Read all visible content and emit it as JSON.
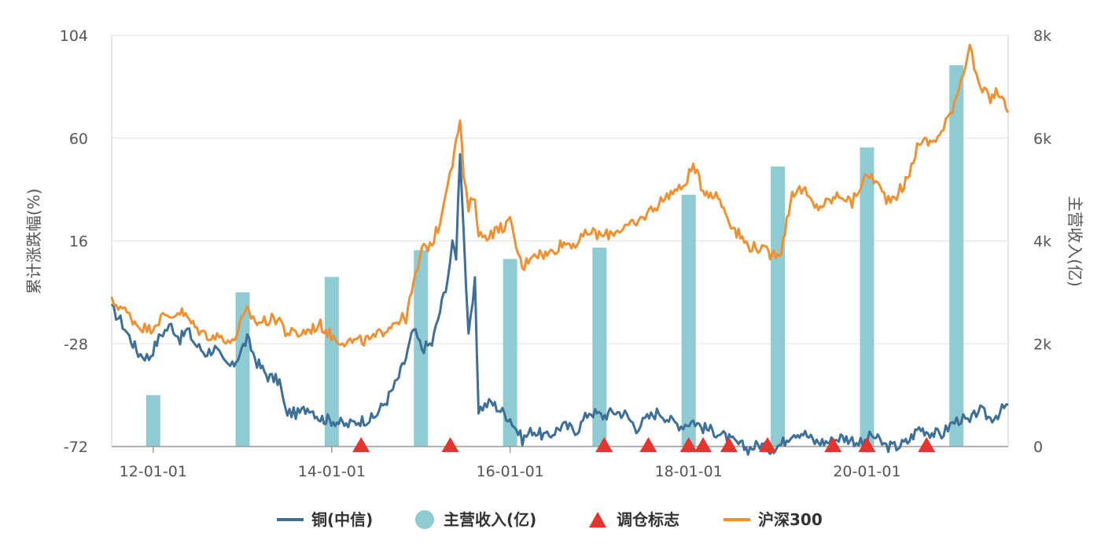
{
  "chart_data": {
    "type": "line",
    "ylabel_left": "累计涨跌幅(%)",
    "ylabel_right": "主营收入(亿)",
    "x_ticks": [
      "12-01-01",
      "14-01-01",
      "16-01-01",
      "18-01-01",
      "20-01-01"
    ],
    "x_tick_dates": [
      "2012-01-01",
      "2014-01-01",
      "2016-01-01",
      "2018-01-01",
      "2020-01-01"
    ],
    "x_range": [
      "2011-07-15",
      "2021-08-01"
    ],
    "y_left_ticks": [
      104,
      60,
      16,
      -28,
      -72
    ],
    "y_left_range": [
      -72,
      104
    ],
    "y_right_ticks": [
      "8k",
      "6k",
      "4k",
      "2k",
      "0"
    ],
    "y_right_range": [
      0,
      8000
    ],
    "grid": true,
    "legend_position": "bottom",
    "colors": {
      "copper": "#3e6f97",
      "revenue": "#8fcbd3",
      "rebalance": "#e8342f",
      "hs300": "#ee9133",
      "grid": "#e2e2e2",
      "axis": "#cfcfcf"
    },
    "legend": [
      {
        "key": "copper",
        "label": "铜(中信)",
        "marker": "line"
      },
      {
        "key": "revenue",
        "label": "主营收入(亿)",
        "marker": "circle"
      },
      {
        "key": "rebalance",
        "label": "调仓标志",
        "marker": "triangle"
      },
      {
        "key": "hs300",
        "label": "沪深300",
        "marker": "line"
      }
    ],
    "series": [
      {
        "name": "铜(中信)",
        "key": "copper",
        "kind": "line",
        "points": [
          [
            "2011-07-15",
            -13
          ],
          [
            "2011-08-20",
            -18
          ],
          [
            "2011-09-25",
            -25
          ],
          [
            "2011-11-01",
            -32
          ],
          [
            "2011-12-15",
            -34
          ],
          [
            "2012-02-01",
            -24
          ],
          [
            "2012-03-15",
            -20
          ],
          [
            "2012-04-20",
            -26
          ],
          [
            "2012-05-20",
            -22
          ],
          [
            "2012-06-20",
            -28
          ],
          [
            "2012-08-01",
            -32
          ],
          [
            "2012-09-10",
            -30
          ],
          [
            "2012-10-15",
            -36
          ],
          [
            "2012-11-20",
            -38
          ],
          [
            "2012-12-20",
            -32
          ],
          [
            "2013-01-20",
            -26
          ],
          [
            "2013-03-01",
            -36
          ],
          [
            "2013-04-15",
            -42
          ],
          [
            "2013-06-01",
            -44
          ],
          [
            "2013-06-25",
            -57
          ],
          [
            "2013-08-15",
            -58
          ],
          [
            "2013-10-01",
            -55
          ],
          [
            "2013-11-15",
            -60
          ],
          [
            "2014-01-15",
            -61
          ],
          [
            "2014-03-01",
            -63
          ],
          [
            "2014-04-20",
            -61
          ],
          [
            "2014-06-20",
            -60
          ],
          [
            "2014-08-15",
            -52
          ],
          [
            "2014-09-25",
            -44
          ],
          [
            "2014-11-01",
            -34
          ],
          [
            "2014-12-01",
            -22
          ],
          [
            "2015-01-05",
            -30
          ],
          [
            "2015-02-15",
            -28
          ],
          [
            "2015-03-20",
            -14
          ],
          [
            "2015-04-20",
            0
          ],
          [
            "2015-05-10",
            14
          ],
          [
            "2015-05-25",
            10
          ],
          [
            "2015-06-10",
            55
          ],
          [
            "2015-06-25",
            20
          ],
          [
            "2015-07-15",
            -26
          ],
          [
            "2015-08-10",
            -2
          ],
          [
            "2015-08-25",
            -56
          ],
          [
            "2015-10-15",
            -53
          ],
          [
            "2016-01-01",
            -60
          ],
          [
            "2016-02-20",
            -69
          ],
          [
            "2016-04-01",
            -65
          ],
          [
            "2016-06-01",
            -68
          ],
          [
            "2016-08-01",
            -63
          ],
          [
            "2016-10-01",
            -65
          ],
          [
            "2016-11-20",
            -57
          ],
          [
            "2017-01-15",
            -59
          ],
          [
            "2017-03-01",
            -57
          ],
          [
            "2017-04-15",
            -58
          ],
          [
            "2017-06-01",
            -64
          ],
          [
            "2017-07-15",
            -60
          ],
          [
            "2017-09-01",
            -57
          ],
          [
            "2017-10-20",
            -61
          ],
          [
            "2017-12-01",
            -63
          ],
          [
            "2018-01-20",
            -61
          ],
          [
            "2018-03-01",
            -64
          ],
          [
            "2018-05-01",
            -66
          ],
          [
            "2018-07-01",
            -70
          ],
          [
            "2018-09-01",
            -73
          ],
          [
            "2018-10-20",
            -71
          ],
          [
            "2018-12-01",
            -73
          ],
          [
            "2019-01-15",
            -71
          ],
          [
            "2019-03-01",
            -66
          ],
          [
            "2019-04-15",
            -66
          ],
          [
            "2019-06-01",
            -70
          ],
          [
            "2019-08-01",
            -70
          ],
          [
            "2019-09-15",
            -68
          ],
          [
            "2019-11-01",
            -69
          ],
          [
            "2019-12-15",
            -71
          ],
          [
            "2020-01-20",
            -67
          ],
          [
            "2020-03-20",
            -72
          ],
          [
            "2020-05-01",
            -72
          ],
          [
            "2020-06-15",
            -70
          ],
          [
            "2020-08-01",
            -64
          ],
          [
            "2020-09-15",
            -66
          ],
          [
            "2020-11-01",
            -67
          ],
          [
            "2020-12-15",
            -62
          ],
          [
            "2021-01-20",
            -60
          ],
          [
            "2021-02-25",
            -62
          ],
          [
            "2021-04-01",
            -56
          ],
          [
            "2021-05-20",
            -60
          ],
          [
            "2021-06-20",
            -58
          ],
          [
            "2021-08-01",
            -54
          ]
        ]
      },
      {
        "name": "沪深300",
        "key": "hs300",
        "kind": "line",
        "points": [
          [
            "2011-07-15",
            -10
          ],
          [
            "2011-08-20",
            -12
          ],
          [
            "2011-09-25",
            -16
          ],
          [
            "2011-11-01",
            -20
          ],
          [
            "2011-12-15",
            -22
          ],
          [
            "2012-02-01",
            -17
          ],
          [
            "2012-03-15",
            -16
          ],
          [
            "2012-04-20",
            -14
          ],
          [
            "2012-05-20",
            -17
          ],
          [
            "2012-06-20",
            -21
          ],
          [
            "2012-08-01",
            -24
          ],
          [
            "2012-09-10",
            -25
          ],
          [
            "2012-10-15",
            -25
          ],
          [
            "2012-11-20",
            -28
          ],
          [
            "2012-12-20",
            -20
          ],
          [
            "2013-01-20",
            -14
          ],
          [
            "2013-03-01",
            -19
          ],
          [
            "2013-04-15",
            -18
          ],
          [
            "2013-06-01",
            -17
          ],
          [
            "2013-06-25",
            -23
          ],
          [
            "2013-08-15",
            -24
          ],
          [
            "2013-10-01",
            -22
          ],
          [
            "2013-11-15",
            -20
          ],
          [
            "2014-01-15",
            -26
          ],
          [
            "2014-03-01",
            -27
          ],
          [
            "2014-04-20",
            -27
          ],
          [
            "2014-06-20",
            -26
          ],
          [
            "2014-08-15",
            -21
          ],
          [
            "2014-09-25",
            -18
          ],
          [
            "2014-11-01",
            -17
          ],
          [
            "2014-12-01",
            -3
          ],
          [
            "2015-01-05",
            12
          ],
          [
            "2015-02-15",
            15
          ],
          [
            "2015-03-20",
            24
          ],
          [
            "2015-04-20",
            42
          ],
          [
            "2015-05-10",
            50
          ],
          [
            "2015-05-25",
            58
          ],
          [
            "2015-06-10",
            68
          ],
          [
            "2015-06-25",
            43
          ],
          [
            "2015-07-15",
            30
          ],
          [
            "2015-08-10",
            36
          ],
          [
            "2015-08-25",
            18
          ],
          [
            "2015-10-15",
            19
          ],
          [
            "2016-01-01",
            24
          ],
          [
            "2016-02-20",
            4
          ],
          [
            "2016-04-01",
            11
          ],
          [
            "2016-06-01",
            10
          ],
          [
            "2016-08-01",
            15
          ],
          [
            "2016-10-01",
            15
          ],
          [
            "2016-11-20",
            20
          ],
          [
            "2017-01-15",
            18
          ],
          [
            "2017-03-01",
            20
          ],
          [
            "2017-04-15",
            22
          ],
          [
            "2017-06-01",
            23
          ],
          [
            "2017-07-15",
            28
          ],
          [
            "2017-09-01",
            32
          ],
          [
            "2017-10-20",
            37
          ],
          [
            "2017-12-01",
            38
          ],
          [
            "2018-01-20",
            48
          ],
          [
            "2018-03-01",
            38
          ],
          [
            "2018-05-01",
            35
          ],
          [
            "2018-07-01",
            22
          ],
          [
            "2018-09-01",
            14
          ],
          [
            "2018-10-20",
            13
          ],
          [
            "2018-12-01",
            10
          ],
          [
            "2019-01-15",
            12
          ],
          [
            "2019-03-01",
            37
          ],
          [
            "2019-04-15",
            38
          ],
          [
            "2019-06-01",
            30
          ],
          [
            "2019-08-01",
            33
          ],
          [
            "2019-09-15",
            36
          ],
          [
            "2019-11-01",
            32
          ],
          [
            "2019-12-15",
            42
          ],
          [
            "2020-01-20",
            44
          ],
          [
            "2020-03-20",
            34
          ],
          [
            "2020-05-01",
            36
          ],
          [
            "2020-06-15",
            42
          ],
          [
            "2020-08-01",
            59
          ],
          [
            "2020-09-15",
            58
          ],
          [
            "2020-11-01",
            62
          ],
          [
            "2020-12-15",
            73
          ],
          [
            "2021-01-20",
            85
          ],
          [
            "2021-02-25",
            100
          ],
          [
            "2021-04-01",
            82
          ],
          [
            "2021-05-20",
            77
          ],
          [
            "2021-06-20",
            80
          ],
          [
            "2021-08-01",
            71
          ]
        ]
      }
    ],
    "revenue_bars": [
      {
        "date": "2012-01-01",
        "value": 1000
      },
      {
        "date": "2013-01-01",
        "value": 3000
      },
      {
        "date": "2014-01-01",
        "value": 3300
      },
      {
        "date": "2015-01-01",
        "value": 3820
      },
      {
        "date": "2016-01-01",
        "value": 3650
      },
      {
        "date": "2017-01-01",
        "value": 3870
      },
      {
        "date": "2018-01-01",
        "value": 4900
      },
      {
        "date": "2019-01-01",
        "value": 5450
      },
      {
        "date": "2020-01-01",
        "value": 5820
      },
      {
        "date": "2021-01-01",
        "value": 7420
      }
    ],
    "rebalance_dates": [
      "2014-05-01",
      "2015-05-01",
      "2017-01-20",
      "2017-07-20",
      "2018-01-01",
      "2018-03-01",
      "2018-06-15",
      "2018-11-20",
      "2019-08-15",
      "2020-01-01",
      "2020-09-01"
    ]
  }
}
